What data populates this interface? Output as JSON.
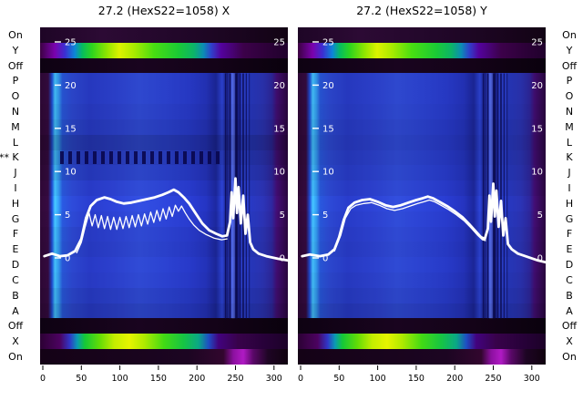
{
  "figure": {
    "background": "#ffffff",
    "text_color": "#000000",
    "curve_color": "#ffffff"
  },
  "side_labels": [
    "On",
    "Y",
    "Off",
    "P",
    "O",
    "N",
    "M",
    "L",
    "K",
    "J",
    "I",
    "H",
    "G",
    "F",
    "E",
    "D",
    "C",
    "B",
    "A",
    "Off",
    "X",
    "On"
  ],
  "k_marker": {
    "row_index": 8,
    "text": "**"
  },
  "rows_left": [
    [
      "dark",
      1
    ],
    [
      "rainbowY",
      1
    ],
    [
      "off",
      1
    ],
    [
      "blue",
      1
    ],
    [
      "blue",
      1
    ],
    [
      "blue",
      0.97
    ],
    [
      "blue",
      0.93
    ],
    [
      "blue",
      0.82
    ],
    [
      "kdash",
      0.9
    ],
    [
      "blue",
      0.96
    ],
    [
      "blue",
      1.04
    ],
    [
      "blue",
      1.1
    ],
    [
      "blue",
      1.07
    ],
    [
      "blue",
      1.02
    ],
    [
      "blue",
      1
    ],
    [
      "blue",
      1.04
    ],
    [
      "blue",
      1.02
    ],
    [
      "blue",
      0.96
    ],
    [
      "blue",
      0.9
    ],
    [
      "off",
      1
    ],
    [
      "rainbowX",
      1
    ],
    [
      "darkmag",
      1
    ]
  ],
  "rows_right": [
    [
      "dark",
      1
    ],
    [
      "rainbowY",
      1
    ],
    [
      "off",
      1
    ],
    [
      "blue",
      1
    ],
    [
      "blue",
      1
    ],
    [
      "blue",
      0.98
    ],
    [
      "blue",
      0.95
    ],
    [
      "blue",
      0.92
    ],
    [
      "blue",
      0.95
    ],
    [
      "blue",
      0.98
    ],
    [
      "blue",
      1.02
    ],
    [
      "blue",
      1.08
    ],
    [
      "blue",
      1.05
    ],
    [
      "blue",
      1.02
    ],
    [
      "blue",
      1
    ],
    [
      "blue",
      1.03
    ],
    [
      "blue",
      1
    ],
    [
      "blue",
      0.96
    ],
    [
      "blue",
      0.9
    ],
    [
      "off",
      1
    ],
    [
      "rainbowX",
      1
    ],
    [
      "darkmag",
      1
    ]
  ],
  "gradients": {
    "dark": [
      [
        0,
        "#1e0526"
      ],
      [
        0.25,
        "#2c0a34"
      ],
      [
        0.55,
        "#22072a"
      ],
      [
        0.8,
        "#1a051f"
      ],
      [
        1,
        "#120314"
      ]
    ],
    "off": [
      [
        0,
        "#0e0212"
      ],
      [
        0.4,
        "#19041f"
      ],
      [
        0.7,
        "#140318"
      ],
      [
        1,
        "#0a010d"
      ]
    ],
    "darkmag": [
      [
        0,
        "#140216"
      ],
      [
        0.6,
        "#1c0522"
      ],
      [
        0.74,
        "#32062e"
      ],
      [
        0.78,
        "#8c10a0"
      ],
      [
        0.82,
        "#b01ac4"
      ],
      [
        0.86,
        "#5a0868"
      ],
      [
        0.92,
        "#1e0524"
      ],
      [
        1,
        "#10020f"
      ]
    ],
    "rainbowY": [
      [
        0,
        "#3c0142"
      ],
      [
        0.06,
        "#7a02ae"
      ],
      [
        0.1,
        "#3c2ed2"
      ],
      [
        0.14,
        "#0c86d8"
      ],
      [
        0.17,
        "#06bc60"
      ],
      [
        0.21,
        "#2ed41e"
      ],
      [
        0.27,
        "#90e600"
      ],
      [
        0.32,
        "#dcf200"
      ],
      [
        0.38,
        "#a8ea00"
      ],
      [
        0.46,
        "#48de12"
      ],
      [
        0.56,
        "#1aca36"
      ],
      [
        0.62,
        "#0cb468"
      ],
      [
        0.66,
        "#0c8cb4"
      ],
      [
        0.69,
        "#2e42cc"
      ],
      [
        0.73,
        "#54029e"
      ],
      [
        0.82,
        "#3c014a"
      ],
      [
        0.92,
        "#2c0138"
      ],
      [
        1,
        "#20012c"
      ]
    ],
    "rainbowX": [
      [
        0,
        "#2c0134"
      ],
      [
        0.08,
        "#4c0260"
      ],
      [
        0.12,
        "#3036c8"
      ],
      [
        0.15,
        "#0a9ab4"
      ],
      [
        0.18,
        "#14c838"
      ],
      [
        0.24,
        "#62dc06"
      ],
      [
        0.3,
        "#c4ee00"
      ],
      [
        0.36,
        "#e6f400"
      ],
      [
        0.42,
        "#b0ea00"
      ],
      [
        0.5,
        "#42da14"
      ],
      [
        0.58,
        "#16c444"
      ],
      [
        0.64,
        "#0aa886"
      ],
      [
        0.68,
        "#1e4ec4"
      ],
      [
        0.72,
        "#42027e"
      ],
      [
        0.8,
        "#38024a"
      ],
      [
        0.9,
        "#28013a"
      ],
      [
        1,
        "#1c0128"
      ]
    ],
    "blue": [
      [
        0,
        "#2c0834"
      ],
      [
        0.033,
        "#320a3c"
      ],
      [
        0.048,
        "#1c48ca"
      ],
      [
        0.06,
        "#41b8f0"
      ],
      [
        0.075,
        "#3092e2"
      ],
      [
        0.09,
        "#2652ce"
      ],
      [
        0.13,
        "#2a44c6"
      ],
      [
        0.2,
        "#2638be"
      ],
      [
        0.3,
        "#2a3ec6"
      ],
      [
        0.4,
        "#2e48ce"
      ],
      [
        0.5,
        "#2a40ca"
      ],
      [
        0.6,
        "#2638c2"
      ],
      [
        0.67,
        "#2230b2"
      ],
      [
        0.71,
        "#1a2492"
      ],
      [
        0.735,
        "#2a40ca"
      ],
      [
        0.755,
        "#161c7c"
      ],
      [
        0.775,
        "#3e56e2"
      ],
      [
        0.795,
        "#12146c"
      ],
      [
        0.815,
        "#2a3ec6"
      ],
      [
        0.85,
        "#2434b2"
      ],
      [
        0.9,
        "#2830a8"
      ],
      [
        0.935,
        "#2a2492"
      ],
      [
        0.955,
        "#3e0c6c"
      ],
      [
        1,
        "#28063c"
      ]
    ]
  },
  "chart_data": {
    "type": "heatmap",
    "subtype": "heatmap-with-profile-overlay",
    "x_ticks": [
      0,
      50,
      100,
      150,
      200,
      250,
      300
    ],
    "y_ticks": [
      25,
      20,
      15,
      10,
      5,
      0
    ],
    "x_max": 318,
    "ylim": [
      0,
      25
    ],
    "row_labels": [
      "On",
      "Y",
      "Off",
      "P",
      "O",
      "N",
      "M",
      "L",
      "K",
      "J",
      "I",
      "H",
      "G",
      "F",
      "E",
      "D",
      "C",
      "B",
      "A",
      "Off",
      "X",
      "On"
    ],
    "legend_position": "none",
    "grid": false,
    "panels": [
      {
        "id": "X",
        "title": "27.2 (HexS22=1058) X",
        "curves": [
          {
            "name": "profile-thick",
            "width": 2.8,
            "points": [
              [
                2,
                0.2
              ],
              [
                12,
                0.5
              ],
              [
                22,
                0.2
              ],
              [
                32,
                0.3
              ],
              [
                42,
                0.8
              ],
              [
                50,
                2.2
              ],
              [
                56,
                4.6
              ],
              [
                62,
                6.0
              ],
              [
                70,
                6.7
              ],
              [
                80,
                7.0
              ],
              [
                88,
                6.8
              ],
              [
                96,
                6.5
              ],
              [
                105,
                6.3
              ],
              [
                115,
                6.4
              ],
              [
                125,
                6.6
              ],
              [
                135,
                6.8
              ],
              [
                145,
                7.0
              ],
              [
                155,
                7.3
              ],
              [
                163,
                7.6
              ],
              [
                170,
                7.9
              ],
              [
                176,
                7.6
              ],
              [
                183,
                7.0
              ],
              [
                190,
                6.3
              ],
              [
                198,
                5.2
              ],
              [
                207,
                4.0
              ],
              [
                216,
                3.2
              ],
              [
                225,
                2.8
              ],
              [
                233,
                2.5
              ],
              [
                239,
                2.6
              ],
              [
                243,
                4.2
              ],
              [
                245,
                7.6
              ],
              [
                247,
                4.6
              ],
              [
                250,
                9.2
              ],
              [
                252,
                5.2
              ],
              [
                254,
                8.2
              ],
              [
                257,
                4.0
              ],
              [
                260,
                7.2
              ],
              [
                263,
                2.8
              ],
              [
                266,
                5.0
              ],
              [
                269,
                1.8
              ],
              [
                273,
                1.0
              ],
              [
                280,
                0.5
              ],
              [
                290,
                0.2
              ],
              [
                305,
                -0.1
              ],
              [
                318,
                -0.3
              ]
            ]
          },
          {
            "name": "profile-thin",
            "width": 1.3,
            "points": [
              [
                44,
                0.6
              ],
              [
                50,
                1.8
              ],
              [
                55,
                3.6
              ],
              [
                60,
                5.2
              ],
              [
                64,
                3.7
              ],
              [
                68,
                5.0
              ],
              [
                72,
                3.5
              ],
              [
                76,
                4.9
              ],
              [
                80,
                3.4
              ],
              [
                84,
                4.8
              ],
              [
                88,
                3.3
              ],
              [
                92,
                4.7
              ],
              [
                96,
                3.3
              ],
              [
                100,
                4.7
              ],
              [
                104,
                3.4
              ],
              [
                108,
                4.8
              ],
              [
                112,
                3.5
              ],
              [
                116,
                4.9
              ],
              [
                120,
                3.6
              ],
              [
                124,
                5.0
              ],
              [
                128,
                3.7
              ],
              [
                132,
                5.1
              ],
              [
                136,
                3.9
              ],
              [
                140,
                5.3
              ],
              [
                144,
                4.1
              ],
              [
                148,
                5.5
              ],
              [
                152,
                4.3
              ],
              [
                156,
                5.7
              ],
              [
                160,
                4.5
              ],
              [
                164,
                5.9
              ],
              [
                168,
                4.8
              ],
              [
                172,
                6.1
              ],
              [
                176,
                5.4
              ],
              [
                180,
                6.0
              ],
              [
                185,
                5.2
              ],
              [
                190,
                4.5
              ],
              [
                196,
                3.8
              ],
              [
                203,
                3.2
              ],
              [
                212,
                2.7
              ],
              [
                222,
                2.3
              ],
              [
                232,
                2.1
              ],
              [
                239,
                2.2
              ]
            ]
          }
        ]
      },
      {
        "id": "Y",
        "title": "27.2 (HexS22=1058) Y",
        "curves": [
          {
            "name": "profile-thick",
            "width": 2.8,
            "points": [
              [
                2,
                0.2
              ],
              [
                12,
                0.4
              ],
              [
                25,
                0.2
              ],
              [
                36,
                0.4
              ],
              [
                44,
                1.0
              ],
              [
                50,
                2.4
              ],
              [
                56,
                4.4
              ],
              [
                62,
                5.8
              ],
              [
                70,
                6.4
              ],
              [
                80,
                6.7
              ],
              [
                90,
                6.8
              ],
              [
                100,
                6.5
              ],
              [
                110,
                6.1
              ],
              [
                120,
                5.9
              ],
              [
                130,
                6.1
              ],
              [
                140,
                6.4
              ],
              [
                150,
                6.7
              ],
              [
                158,
                6.9
              ],
              [
                165,
                7.1
              ],
              [
                172,
                6.9
              ],
              [
                180,
                6.5
              ],
              [
                190,
                6.0
              ],
              [
                200,
                5.4
              ],
              [
                210,
                4.7
              ],
              [
                220,
                3.8
              ],
              [
                228,
                3.0
              ],
              [
                234,
                2.4
              ],
              [
                239,
                2.2
              ],
              [
                243,
                3.4
              ],
              [
                245,
                7.2
              ],
              [
                247,
                4.2
              ],
              [
                250,
                8.6
              ],
              [
                252,
                4.8
              ],
              [
                254,
                7.8
              ],
              [
                257,
                3.6
              ],
              [
                260,
                6.6
              ],
              [
                263,
                2.6
              ],
              [
                266,
                4.6
              ],
              [
                269,
                1.6
              ],
              [
                274,
                1.0
              ],
              [
                282,
                0.5
              ],
              [
                295,
                0.1
              ],
              [
                308,
                -0.3
              ],
              [
                318,
                -0.5
              ]
            ]
          },
          {
            "name": "profile-thin",
            "width": 1.3,
            "points": [
              [
                44,
                0.8
              ],
              [
                52,
                2.6
              ],
              [
                58,
                4.6
              ],
              [
                65,
                5.7
              ],
              [
                72,
                6.1
              ],
              [
                82,
                6.3
              ],
              [
                92,
                6.4
              ],
              [
                102,
                6.1
              ],
              [
                112,
                5.7
              ],
              [
                122,
                5.5
              ],
              [
                132,
                5.7
              ],
              [
                142,
                6.0
              ],
              [
                152,
                6.3
              ],
              [
                160,
                6.5
              ],
              [
                167,
                6.7
              ],
              [
                174,
                6.5
              ],
              [
                182,
                6.1
              ],
              [
                192,
                5.6
              ],
              [
                202,
                5.0
              ],
              [
                212,
                4.3
              ],
              [
                222,
                3.4
              ],
              [
                230,
                2.6
              ],
              [
                236,
                2.1
              ],
              [
                240,
                2.0
              ]
            ]
          }
        ]
      }
    ],
    "vlines": [
      {
        "x": 237,
        "w": 1.2,
        "c": "#0b0b52",
        "o": 0.8
      },
      {
        "x": 243,
        "w": 1.6,
        "c": "#0b0b52",
        "o": 0.85
      },
      {
        "x": 247,
        "w": 3.5,
        "c": "#9ab0ff",
        "o": 0.22
      },
      {
        "x": 251,
        "w": 2.2,
        "c": "#090948",
        "o": 0.85
      },
      {
        "x": 256,
        "w": 1.2,
        "c": "#0b0b52",
        "o": 0.8
      },
      {
        "x": 260,
        "w": 1.6,
        "c": "#090948",
        "o": 0.85
      },
      {
        "x": 264,
        "w": 1.2,
        "c": "#0b0b52",
        "o": 0.8
      },
      {
        "x": 268,
        "w": 1.0,
        "c": "#0b0b52",
        "o": 0.7
      }
    ]
  }
}
